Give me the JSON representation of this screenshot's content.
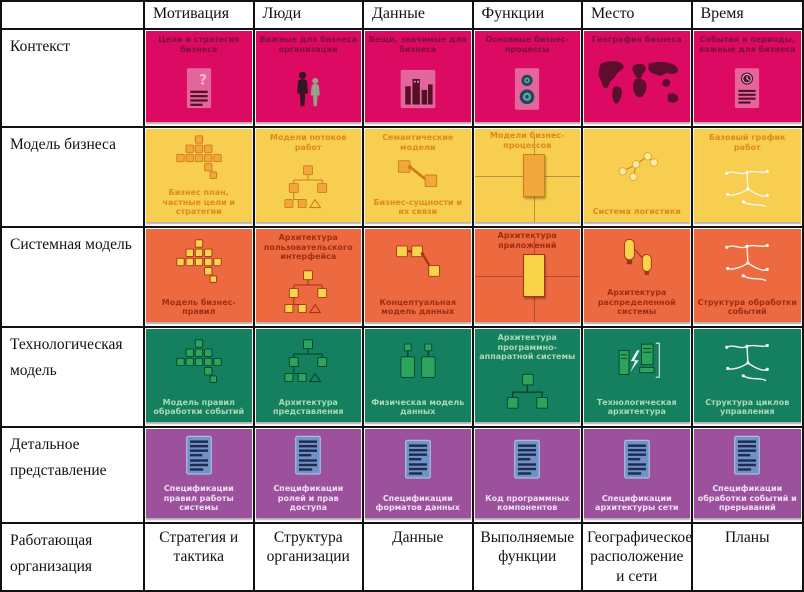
{
  "table": {
    "corner": "",
    "columns": [
      "Мотивация",
      "Люди",
      "Данные",
      "Функции",
      "Место",
      "Время"
    ],
    "rows": [
      {
        "label": "Контекст",
        "bg": "#dc0a63",
        "text": "#7d1038",
        "icon_fill": "#e4659c",
        "icon_stroke": "#551026",
        "cells": [
          {
            "label": "Цели и стратегия бизнеса",
            "icon": "doc-question",
            "pos": "top"
          },
          {
            "label": "Важные для бизнеса организации",
            "icon": "people",
            "pos": "top"
          },
          {
            "label": "Вещи, значимые для бизнеса",
            "icon": "city",
            "pos": "top"
          },
          {
            "label": "Основные бизнес-процессы",
            "icon": "gears",
            "pos": "top"
          },
          {
            "label": "География бизнеса",
            "icon": "map",
            "pos": "top"
          },
          {
            "label": "События и периоды, важные для бизнеса",
            "icon": "clock-doc",
            "pos": "top"
          }
        ]
      },
      {
        "label": "Модель бизнеса",
        "bg": "#f7ce4f",
        "text": "#dd8a1f",
        "icon_fill": "#f1a73c",
        "icon_stroke": "#cf7d16",
        "cells": [
          {
            "label": "Бизнес план, частные цели и стратегии",
            "icon": "pyramid",
            "pos": "bottom"
          },
          {
            "label": "Модели потоков работ",
            "icon": "hierarchy",
            "pos": "top"
          },
          {
            "label": "Семантические модели",
            "label2": "Бизнес-сущности и их связи",
            "icon": "link2",
            "pos": "both"
          },
          {
            "label": "Модели бизнес-процессов",
            "icon": "crossbox",
            "pos": "top"
          },
          {
            "label": "Система логистики",
            "icon": "nodes",
            "pos": "bottom"
          },
          {
            "label": "Базовый график работ",
            "icon": "sketch",
            "pos": "top"
          }
        ]
      },
      {
        "label": "Системная модель",
        "bg": "#ed6a40",
        "text": "#9e2e14",
        "icon_fill": "#f8d44a",
        "icon_stroke": "#a33417",
        "cells": [
          {
            "label": "Модель бизнес-правил",
            "icon": "pyramid",
            "pos": "bottom"
          },
          {
            "label": "Архитектура пользовательского интерфейса",
            "icon": "hierarchy",
            "pos": "top"
          },
          {
            "label": "Концептуальная модель данных",
            "icon": "link3",
            "pos": "bottom"
          },
          {
            "label": "Архитектура приложений",
            "icon": "crossbox",
            "pos": "top"
          },
          {
            "label": "Архитектура распределенной системы",
            "icon": "cylinders",
            "pos": "bottom"
          },
          {
            "label": "Структура обработки событий",
            "icon": "sketch",
            "pos": "bottom"
          }
        ]
      },
      {
        "label": "Технологическая модель",
        "bg": "#15805f",
        "text": "#a9d9b5",
        "icon_fill": "#2ca45c",
        "icon_stroke": "#073f2b",
        "cells": [
          {
            "label": "Модель правил обработки событий",
            "icon": "pyramid",
            "pos": "bottom"
          },
          {
            "label": "Архитектура представления",
            "icon": "hierarchy",
            "pos": "bottom"
          },
          {
            "label": "Физическая модель данных",
            "icon": "blocks",
            "pos": "bottom"
          },
          {
            "label": "Архитектура программно-аппаратной системы",
            "icon": "tree",
            "pos": "top"
          },
          {
            "label": "Технологическая архитектура",
            "icon": "hardware",
            "pos": "bottom"
          },
          {
            "label": "Структура циклов управления",
            "icon": "sketch",
            "pos": "bottom"
          }
        ]
      },
      {
        "label": "Детальное представление",
        "bg": "#9c519c",
        "text": "#eedff2",
        "icon_fill": "#7191c9",
        "icon_stroke": "#1f2c50",
        "cells": [
          {
            "label": "Спецификации правил работы системы",
            "icon": "spec",
            "pos": "bottom"
          },
          {
            "label": "Спецификации ролей и прав доступа",
            "icon": "spec",
            "pos": "bottom"
          },
          {
            "label": "Спецификации форматов данных",
            "icon": "spec",
            "pos": "bottom"
          },
          {
            "label": "Код программных компонентов",
            "icon": "spec",
            "pos": "bottom"
          },
          {
            "label": "Спецификации архитектуры сети",
            "icon": "spec",
            "pos": "bottom"
          },
          {
            "label": "Спецификации обработки событий и прерываний",
            "icon": "spec",
            "pos": "bottom"
          }
        ]
      }
    ],
    "footer": {
      "label": "Работающая организация",
      "cells": [
        "Стратегия и тактика",
        "Структура организации",
        "Данные",
        "Выполняемые функции",
        "Географическое расположение и сети",
        "Планы"
      ]
    }
  }
}
